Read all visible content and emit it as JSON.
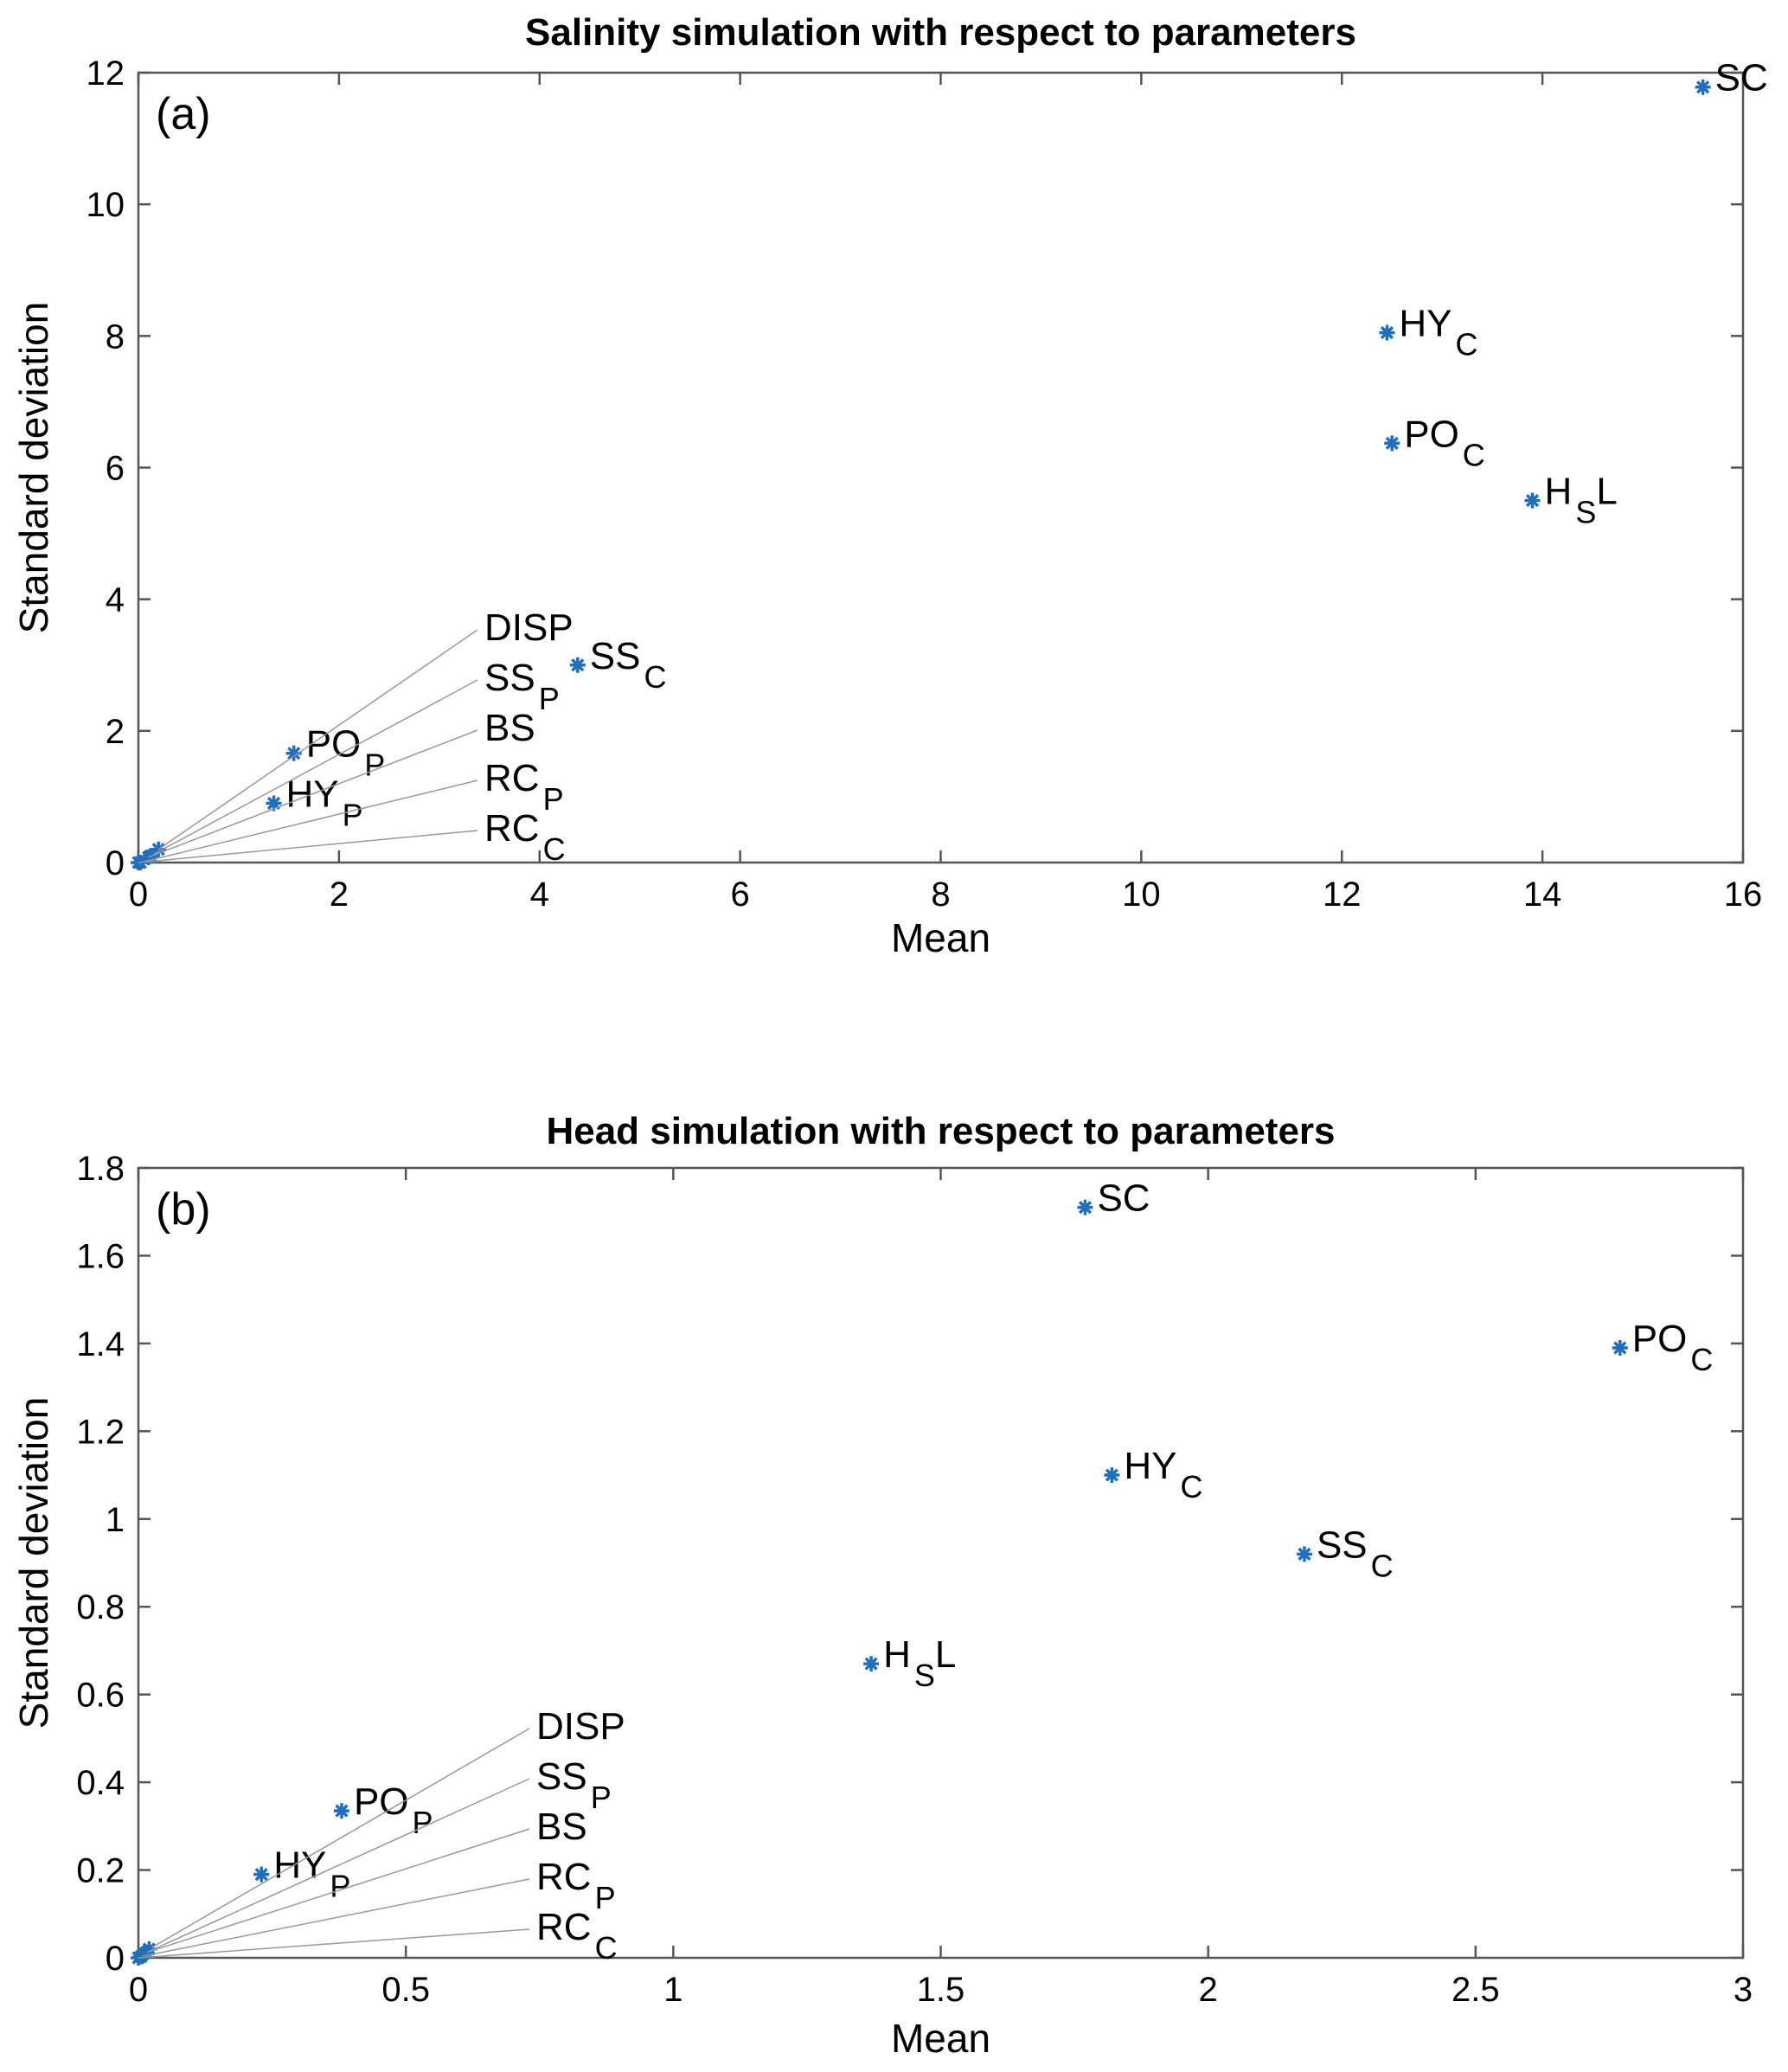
{
  "chart_data": [
    {
      "type": "scatter",
      "title": "Salinity simulation with respect to parameters",
      "panel_label": "(a)",
      "xlabel": "Mean",
      "ylabel": "Standard deviation",
      "xlim": [
        0,
        16
      ],
      "ylim": [
        0,
        12
      ],
      "xticks": [
        0,
        2,
        4,
        6,
        8,
        10,
        12,
        14,
        16
      ],
      "yticks": [
        0,
        2,
        4,
        6,
        8,
        10,
        12
      ],
      "grid": false,
      "marker_color": "#1f6fc0",
      "points": [
        {
          "label": "SC",
          "sub": "",
          "suffix": "",
          "x": 15.6,
          "y": 11.78
        },
        {
          "label": "HY",
          "sub": "C",
          "suffix": "",
          "x": 12.45,
          "y": 8.05
        },
        {
          "label": "PO",
          "sub": "C",
          "suffix": "",
          "x": 12.5,
          "y": 6.37
        },
        {
          "label": "H",
          "sub": "S",
          "suffix": "L",
          "x": 13.9,
          "y": 5.5
        },
        {
          "label": "SS",
          "sub": "C",
          "suffix": "",
          "x": 4.38,
          "y": 3.0
        },
        {
          "label": "PO",
          "sub": "P",
          "suffix": "",
          "x": 1.55,
          "y": 1.66
        },
        {
          "label": "HY",
          "sub": "P",
          "suffix": "",
          "x": 1.35,
          "y": 0.9
        },
        {
          "label": "DISP",
          "sub": "",
          "suffix": "",
          "x": 0.2,
          "y": 0.2
        },
        {
          "label": "SS",
          "sub": "P",
          "suffix": "",
          "x": 0.12,
          "y": 0.1
        },
        {
          "label": "BS",
          "sub": "",
          "suffix": "",
          "x": 0.1,
          "y": 0.08
        },
        {
          "label": "RC",
          "sub": "P",
          "suffix": "",
          "x": 0.02,
          "y": 0.0
        },
        {
          "label": "RC",
          "sub": "C",
          "suffix": "",
          "x": 0.0,
          "y": 0.0
        }
      ]
    },
    {
      "type": "scatter",
      "title": "Head simulation with respect to parameters",
      "panel_label": "(b)",
      "xlabel": "Mean",
      "ylabel": "Standard deviation",
      "xlim": [
        0,
        3
      ],
      "ylim": [
        0,
        1.8
      ],
      "xticks": [
        0,
        0.5,
        1,
        1.5,
        2,
        2.5,
        3
      ],
      "yticks": [
        0,
        0.2,
        0.4,
        0.6,
        0.8,
        1,
        1.2,
        1.4,
        1.6,
        1.8
      ],
      "grid": false,
      "marker_color": "#1f6fc0",
      "points": [
        {
          "label": "SC",
          "sub": "",
          "suffix": "",
          "x": 1.77,
          "y": 1.71
        },
        {
          "label": "PO",
          "sub": "C",
          "suffix": "",
          "x": 2.77,
          "y": 1.39
        },
        {
          "label": "HY",
          "sub": "C",
          "suffix": "",
          "x": 1.82,
          "y": 1.1
        },
        {
          "label": "SS",
          "sub": "C",
          "suffix": "",
          "x": 2.18,
          "y": 0.92
        },
        {
          "label": "H",
          "sub": "S",
          "suffix": "L",
          "x": 1.37,
          "y": 0.67
        },
        {
          "label": "PO",
          "sub": "P",
          "suffix": "",
          "x": 0.38,
          "y": 0.335
        },
        {
          "label": "HY",
          "sub": "P",
          "suffix": "",
          "x": 0.23,
          "y": 0.19
        },
        {
          "label": "DISP",
          "sub": "",
          "suffix": "",
          "x": 0.02,
          "y": 0.02
        },
        {
          "label": "SS",
          "sub": "P",
          "suffix": "",
          "x": 0.015,
          "y": 0.012
        },
        {
          "label": "BS",
          "sub": "",
          "suffix": "",
          "x": 0.01,
          "y": 0.01
        },
        {
          "label": "RC",
          "sub": "P",
          "suffix": "",
          "x": 0.005,
          "y": 0.003
        },
        {
          "label": "RC",
          "sub": "C",
          "suffix": "",
          "x": 0.0,
          "y": 0.0
        }
      ]
    }
  ]
}
